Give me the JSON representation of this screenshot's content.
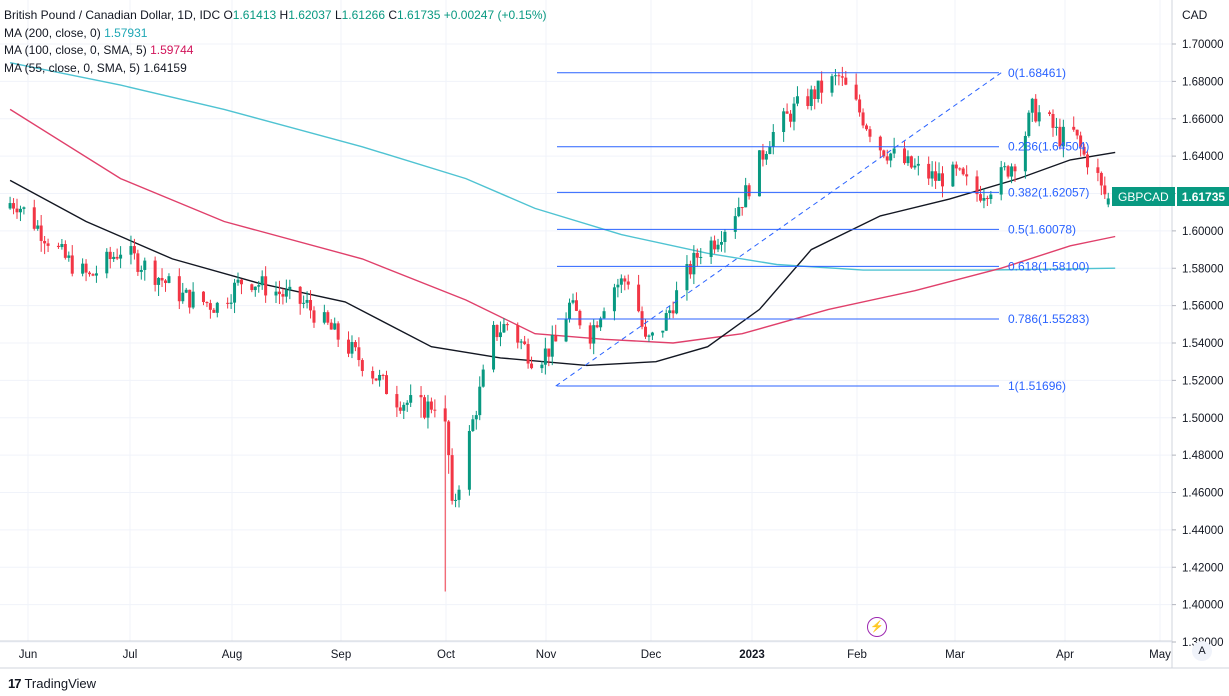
{
  "legend": {
    "title": "British Pound / Canadian Dollar, 1D, IDC",
    "ohlc": {
      "o_label": "O",
      "o": "1.61413",
      "h_label": "H",
      "h": "1.62037",
      "l_label": "L",
      "l": "1.61266",
      "c_label": "C",
      "c": "1.61735",
      "change": "+0.00247 (+0.15%)"
    },
    "ma200_label": "MA (200, close, 0)",
    "ma200_value": "1.57931",
    "ma100_label": "MA (100, close, 0, SMA, 5)",
    "ma100_value": "1.59744",
    "ma55_label": "MA (55, close, 0, SMA, 5)",
    "ma55_value": "1.64159"
  },
  "currency": "CAD",
  "symbol_badge": {
    "symbol": "GBPCAD",
    "price": "1.61735"
  },
  "footer": {
    "logo_glyph": "17",
    "brand": "TradingView"
  },
  "auto_label": "A",
  "colors": {
    "up": "#089981",
    "down": "#f23645",
    "ma200": "#4fc3d2",
    "ma100": "#e0406b",
    "ma55": "#131722",
    "fib": "#2962ff",
    "fib_text": "#2962ff"
  },
  "chart_data": {
    "type": "candlestick",
    "instrument": "GBPCAD",
    "yaxis": {
      "min": 1.38,
      "max": 1.71,
      "ticks": [
        "1.70000",
        "1.68000",
        "1.66000",
        "1.64000",
        "1.62000",
        "1.60000",
        "1.58000",
        "1.56000",
        "1.54000",
        "1.52000",
        "1.50000",
        "1.48000",
        "1.46000",
        "1.44000",
        "1.42000",
        "1.40000",
        "1.38000"
      ]
    },
    "xaxis": {
      "labels": [
        "Jun",
        "Jul",
        "Aug",
        "Sep",
        "Oct",
        "Nov",
        "Dec",
        "2023",
        "Feb",
        "Mar",
        "Apr",
        "May"
      ]
    },
    "fibonacci": {
      "levels": [
        {
          "ratio": "0",
          "price": "1.68461",
          "label": "0(1.68461)"
        },
        {
          "ratio": "0.236",
          "price": "1.64504",
          "label": "0.236(1.64504)"
        },
        {
          "ratio": "0.382",
          "price": "1.62057",
          "label": "0.382(1.62057)"
        },
        {
          "ratio": "0.5",
          "price": "1.60078",
          "label": "0.5(1.60078)"
        },
        {
          "ratio": "0.618",
          "price": "1.58100",
          "label": "0.618(1.58100)"
        },
        {
          "ratio": "0.786",
          "price": "1.55283",
          "label": "0.786(1.55283)"
        },
        {
          "ratio": "1",
          "price": "1.51696",
          "label": "1(1.51696)"
        }
      ],
      "trend_from": {
        "date": "2022-11-04",
        "price": 1.51696
      },
      "trend_to": {
        "date": "2023-03-13",
        "price": 1.68461
      }
    },
    "grid": true
  }
}
